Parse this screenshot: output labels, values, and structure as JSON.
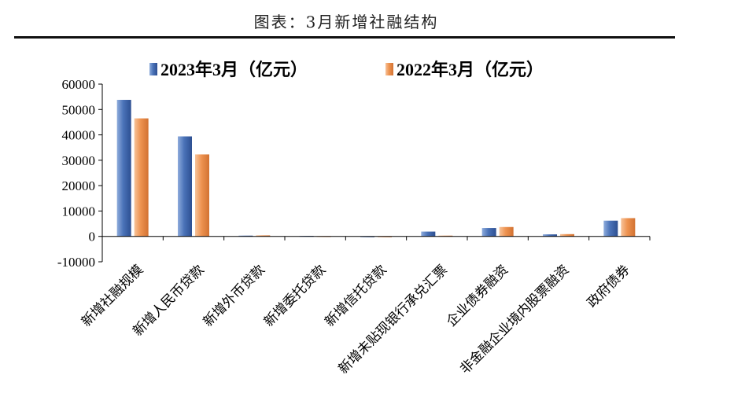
{
  "caption": "图表：3月新增社融结构",
  "chart_data": {
    "type": "bar",
    "title": "",
    "xlabel": "",
    "ylabel": "",
    "ylim": [
      -10000,
      60000
    ],
    "yticks": [
      -10000,
      0,
      10000,
      20000,
      30000,
      40000,
      50000,
      60000
    ],
    "legend_position": "top",
    "categories": [
      "新增社融规模",
      "新增人民币贷款",
      "新增外币贷款",
      "新增委托贷款",
      "新增信托贷款",
      "新增未贴现银行承兑汇票",
      "企业债券融资",
      "非金融企业境内股票融资",
      "政府债券"
    ],
    "series": [
      {
        "name": "2023年3月（亿元）",
        "color": "#4A72B8",
        "values": [
          53800,
          39400,
          300,
          200,
          -300,
          1900,
          3300,
          800,
          6200
        ]
      },
      {
        "name": "2022年3月（亿元）",
        "color": "#EE9350",
        "values": [
          46500,
          32300,
          400,
          100,
          -200,
          300,
          3700,
          900,
          7200
        ]
      }
    ]
  }
}
